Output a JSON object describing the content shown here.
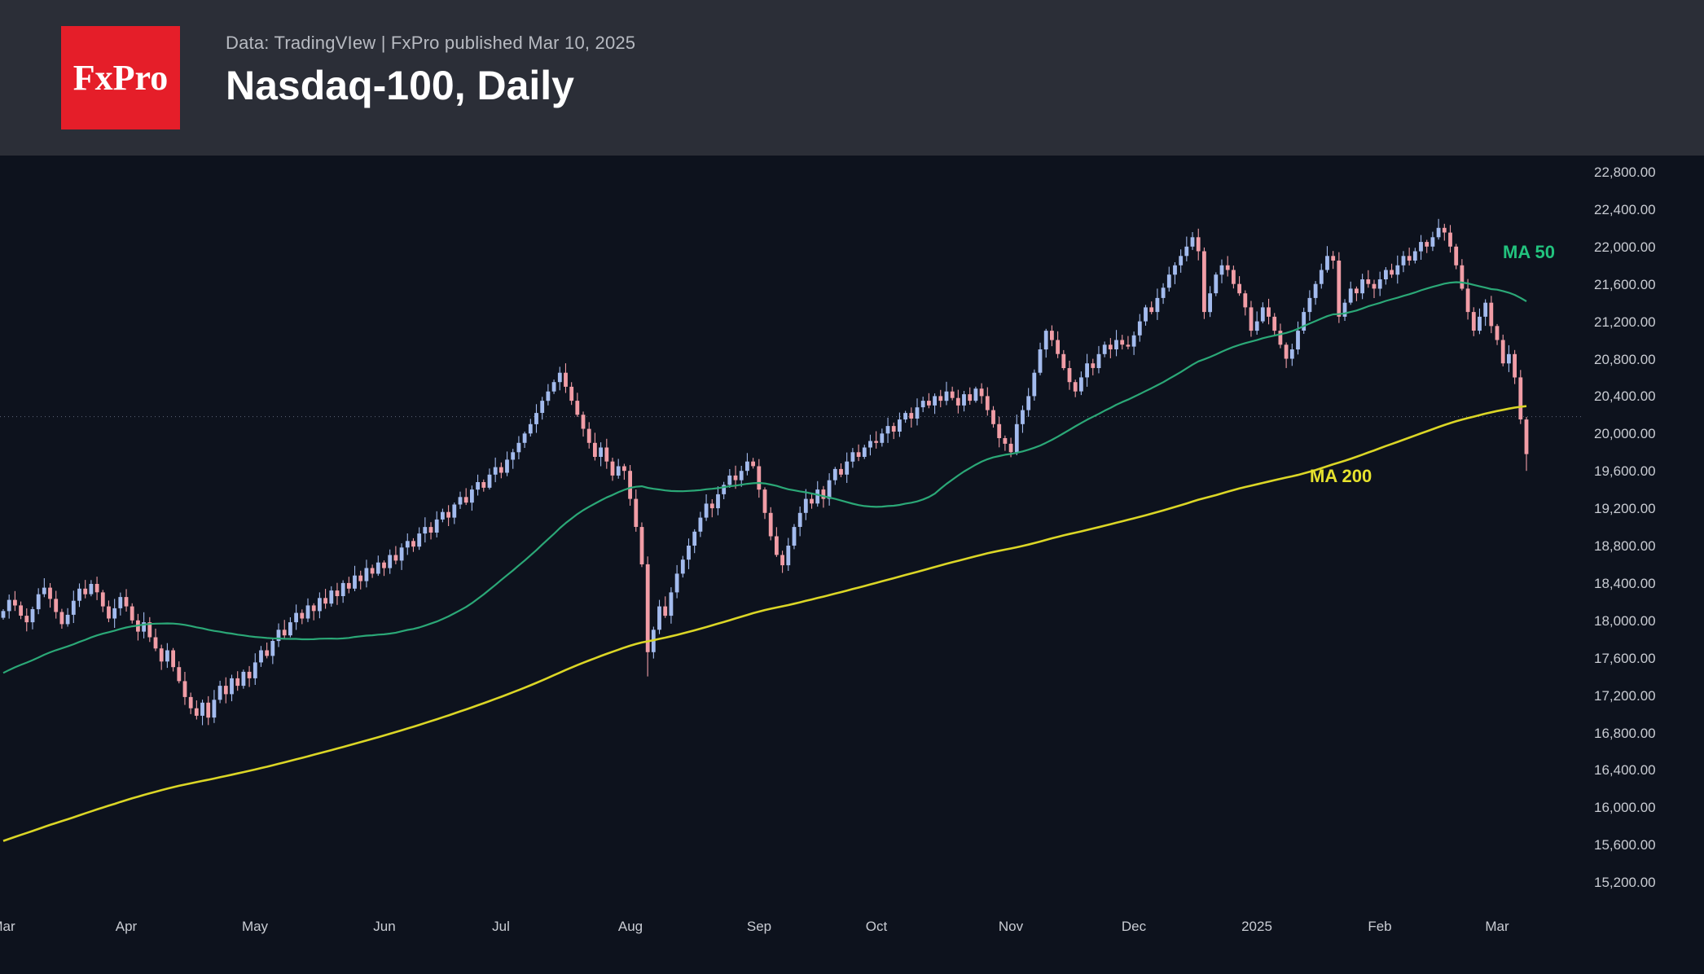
{
  "header": {
    "logo_text": "FxPro",
    "logo_bg": "#e51e29",
    "subtitle": "Data: TradingVIew | FxPro published Mar 10, 2025",
    "title": "Nasdaq-100, Daily"
  },
  "chart_data": {
    "type": "candlestick",
    "title": "Nasdaq-100, Daily",
    "instrument": "Nasdaq-100",
    "timeframe": "Daily",
    "x_tick_labels": [
      "Mar",
      "Apr",
      "May",
      "Jun",
      "Jul",
      "Aug",
      "Sep",
      "Oct",
      "Nov",
      "Dec",
      "2025",
      "Feb",
      "Mar"
    ],
    "month_start_indices": [
      0,
      21,
      43,
      65,
      85,
      107,
      129,
      149,
      172,
      193,
      214,
      235,
      255
    ],
    "y_axis": {
      "min": 15200,
      "max": 22800,
      "step": 400
    },
    "y_tick_labels": [
      "22,800.00",
      "22,400.00",
      "22,000.00",
      "21,600.00",
      "21,200.00",
      "20,800.00",
      "20,400.00",
      "20,000.00",
      "19,600.00",
      "19,200.00",
      "18,800.00",
      "18,400.00",
      "18,000.00",
      "17,600.00",
      "17,200.00",
      "16,800.00",
      "16,400.00",
      "16,000.00",
      "15,600.00",
      "15,200.00"
    ],
    "dotted_line_price": 20180,
    "closes": [
      18100,
      18220,
      18160,
      18050,
      17980,
      18120,
      18280,
      18350,
      18230,
      18090,
      17960,
      18060,
      18210,
      18340,
      18280,
      18390,
      18300,
      18150,
      18020,
      18130,
      18250,
      18150,
      18000,
      17880,
      17980,
      17820,
      17700,
      17560,
      17680,
      17500,
      17350,
      17180,
      17060,
      16980,
      17120,
      16960,
      17150,
      17300,
      17210,
      17380,
      17300,
      17450,
      17380,
      17550,
      17680,
      17620,
      17780,
      17900,
      17840,
      17980,
      18080,
      18020,
      18160,
      18100,
      18240,
      18180,
      18320,
      18260,
      18400,
      18340,
      18480,
      18420,
      18560,
      18500,
      18620,
      18560,
      18700,
      18640,
      18780,
      18850,
      18790,
      18930,
      19000,
      18940,
      19080,
      19160,
      19100,
      19240,
      19320,
      19260,
      19400,
      19480,
      19420,
      19560,
      19640,
      19580,
      19720,
      19800,
      19900,
      20000,
      20100,
      20220,
      20350,
      20450,
      20550,
      20650,
      20500,
      20350,
      20200,
      20050,
      19900,
      19750,
      19850,
      19700,
      19550,
      19650,
      19600,
      19300,
      19000,
      18600,
      17660,
      17900,
      18150,
      18050,
      18300,
      18500,
      18650,
      18800,
      18950,
      19100,
      19250,
      19200,
      19350,
      19450,
      19550,
      19500,
      19600,
      19700,
      19650,
      19400,
      19150,
      18900,
      18700,
      18590,
      18800,
      19000,
      19150,
      19300,
      19250,
      19400,
      19300,
      19500,
      19620,
      19560,
      19700,
      19800,
      19750,
      19850,
      19920,
      19900,
      20000,
      20080,
      20020,
      20150,
      20220,
      20160,
      20280,
      20350,
      20300,
      20400,
      20350,
      20450,
      20380,
      20300,
      20420,
      20350,
      20480,
      20400,
      20250,
      20100,
      19950,
      19890,
      19800,
      20100,
      20250,
      20400,
      20650,
      20900,
      21100,
      21000,
      20850,
      20700,
      20550,
      20450,
      20600,
      20750,
      20700,
      20850,
      20950,
      20900,
      21000,
      20950,
      20930,
      21050,
      21200,
      21350,
      21300,
      21450,
      21560,
      21700,
      21800,
      21900,
      22000,
      22100,
      21950,
      21300,
      21500,
      21700,
      21800,
      21750,
      21600,
      21500,
      21350,
      21100,
      21200,
      21350,
      21250,
      21100,
      20950,
      20800,
      20900,
      21100,
      21300,
      21450,
      21600,
      21750,
      21900,
      21850,
      21250,
      21400,
      21550,
      21500,
      21650,
      21600,
      21550,
      21650,
      21750,
      21700,
      21800,
      21900,
      21850,
      21950,
      22050,
      22000,
      22100,
      22200,
      22150,
      22000,
      21800,
      21550,
      21300,
      21100,
      21250,
      21400,
      21150,
      21000,
      20750,
      20850,
      20600,
      20150,
      19780
    ],
    "wick_overrides": {
      "110": {
        "low": 17400
      },
      "260": {
        "low": 19600
      }
    },
    "history_anchors": [
      [
        -200,
        13800
      ],
      [
        -140,
        15000
      ],
      [
        -100,
        15000
      ],
      [
        -60,
        16300
      ],
      [
        -25,
        17500
      ],
      [
        0,
        18050
      ]
    ],
    "ma50": {
      "label": "MA 50",
      "period": 50,
      "color": "#2ba877",
      "label_color": "#22c37e",
      "label_index": 256,
      "label_price": 21880
    },
    "ma200": {
      "label": "MA 200",
      "period": 200,
      "color": "#dbd626",
      "label_color": "#e6e22e",
      "label_index": 223,
      "label_price": 19480
    },
    "colors": {
      "up": "#a3bbee",
      "down": "#f19da6",
      "background": "#0d121d",
      "header_background": "#2b2e37",
      "axis_text": "#c9ccd3",
      "dotted_line": "#8b94ad"
    }
  }
}
